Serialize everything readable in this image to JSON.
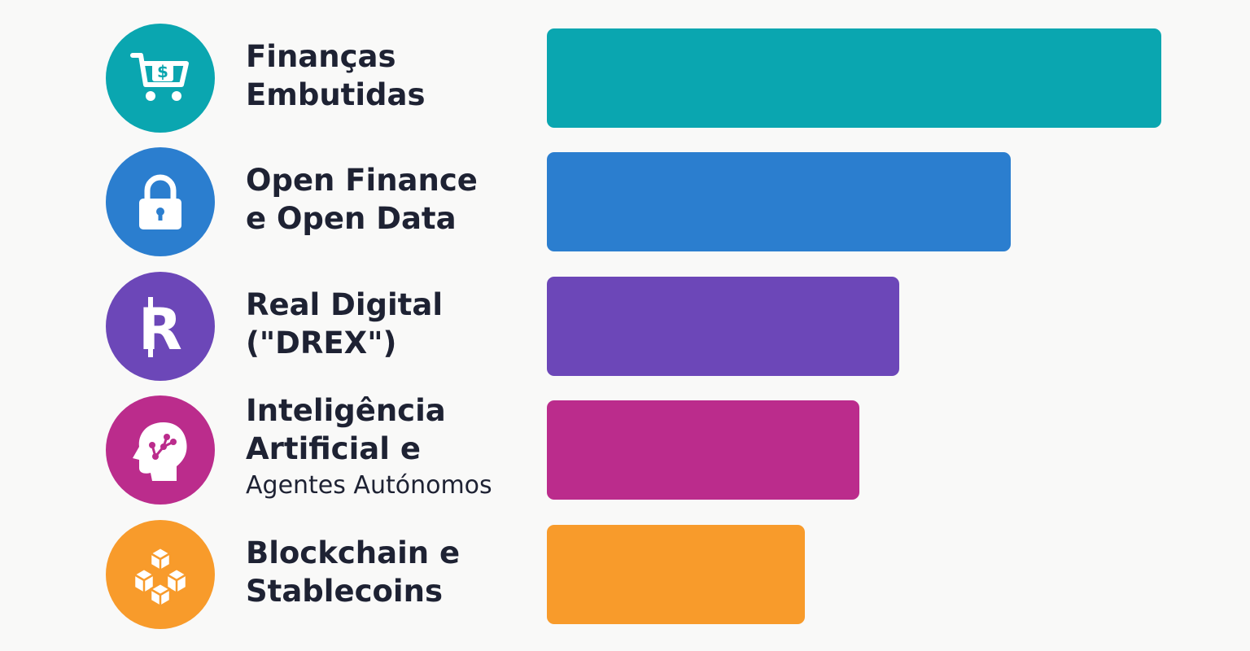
{
  "chart_data": {
    "type": "bar",
    "orientation": "horizontal",
    "axis_visible": false,
    "categories": [
      [
        "Finanças",
        "Embutidas"
      ],
      [
        "Open Finance",
        "e Open Data"
      ],
      [
        "Real Digital",
        "(\"DREX\")"
      ],
      [
        "Inteligência",
        "Artificial e",
        "Agentes Autónomos"
      ],
      [
        "Blockchain e",
        "Stablecoins"
      ]
    ],
    "values": [
      100,
      75.5,
      57.3,
      50.9,
      42.0
    ],
    "xlim": [
      0,
      100
    ],
    "colors": [
      "#0aa6b0",
      "#2b7ecf",
      "#6c47b8",
      "#bb2c8c",
      "#f89b2b"
    ],
    "icons": [
      "shopping-cart-dollar-icon",
      "padlock-icon",
      "real-currency-icon",
      "ai-head-icon",
      "blockchain-cubes-icon"
    ]
  }
}
